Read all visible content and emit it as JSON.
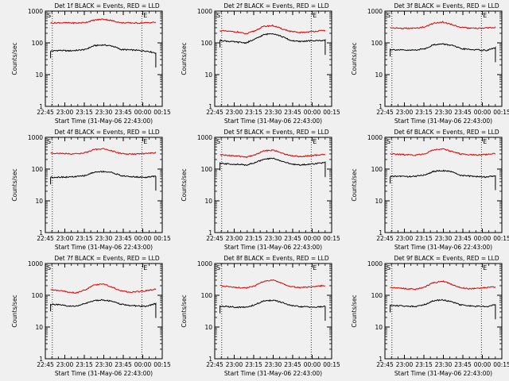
{
  "figure": {
    "background": "#f0f0f0",
    "black_color": "#000000",
    "red_color": "#dd0000"
  },
  "chart_data": [
    {
      "type": "line",
      "title": "Det 1f BLACK = Events, RED = LLD",
      "xlabel": "Start Time (31-May-06 22:43:00)",
      "ylabel": "Counts/sec",
      "x_tick_labels": [
        "22:45",
        "23:00",
        "23:15",
        "23:30",
        "23:45",
        "00:00",
        "00:15"
      ],
      "y_tick_labels": [
        "1",
        "10",
        "100",
        "1000"
      ],
      "yscale": "log",
      "ylim": [
        1,
        1000
      ],
      "markers": [
        "S",
        "E"
      ],
      "series": [
        {
          "color": "black",
          "values": [
            55,
            58,
            56,
            58,
            62,
            82,
            86,
            80,
            62,
            60,
            58,
            55,
            48
          ]
        },
        {
          "color": "red",
          "values": [
            420,
            430,
            425,
            420,
            440,
            520,
            560,
            500,
            430,
            425,
            420,
            430,
            445
          ]
        }
      ]
    },
    {
      "type": "line",
      "title": "Det 2f BLACK = Events, RED = LLD",
      "xlabel": "Start Time (31-May-06 22:43:00)",
      "ylabel": "Counts/sec",
      "x_tick_labels": [
        "22:45",
        "23:00",
        "23:15",
        "23:30",
        "23:45",
        "00:00",
        "00:15"
      ],
      "y_tick_labels": [
        "1",
        "10",
        "100",
        "1000"
      ],
      "yscale": "log",
      "ylim": [
        1,
        1000
      ],
      "markers": [
        "S",
        "E"
      ],
      "series": [
        {
          "color": "black",
          "values": [
            120,
            112,
            105,
            100,
            130,
            180,
            200,
            160,
            120,
            110,
            115,
            118,
            120
          ]
        },
        {
          "color": "red",
          "values": [
            240,
            230,
            220,
            190,
            240,
            330,
            350,
            280,
            230,
            210,
            220,
            235,
            245
          ]
        }
      ]
    },
    {
      "type": "line",
      "title": "Det 3f BLACK = Events, RED = LLD",
      "xlabel": "Start Time (31-May-06 22:43:00)",
      "ylabel": "Counts/sec",
      "x_tick_labels": [
        "22:45",
        "23:00",
        "23:15",
        "23:30",
        "23:45",
        "00:00",
        "00:15"
      ],
      "y_tick_labels": [
        "1",
        "10",
        "100",
        "1000"
      ],
      "yscale": "log",
      "ylim": [
        1,
        1000
      ],
      "markers": [
        "S",
        "E"
      ],
      "series": [
        {
          "color": "black",
          "values": [
            62,
            60,
            58,
            60,
            66,
            88,
            92,
            84,
            66,
            62,
            60,
            58,
            70
          ]
        },
        {
          "color": "red",
          "values": [
            300,
            290,
            285,
            290,
            320,
            420,
            450,
            380,
            310,
            290,
            285,
            295,
            310
          ]
        }
      ]
    },
    {
      "type": "line",
      "title": "Det 4f BLACK = Events, RED = LLD",
      "xlabel": "Start Time (31-May-06 22:43:00)",
      "ylabel": "Counts/sec",
      "x_tick_labels": [
        "22:45",
        "23:00",
        "23:15",
        "23:30",
        "23:45",
        "00:00",
        "00:15"
      ],
      "y_tick_labels": [
        "1",
        "10",
        "100",
        "1000"
      ],
      "yscale": "log",
      "ylim": [
        1,
        1000
      ],
      "markers": [
        "S",
        "E"
      ],
      "series": [
        {
          "color": "black",
          "values": [
            55,
            56,
            56,
            58,
            63,
            80,
            84,
            78,
            62,
            58,
            56,
            55,
            60
          ]
        },
        {
          "color": "red",
          "values": [
            320,
            310,
            305,
            300,
            330,
            410,
            440,
            370,
            310,
            295,
            300,
            310,
            330
          ]
        }
      ]
    },
    {
      "type": "line",
      "title": "Det 5f BLACK = Events, RED = LLD",
      "xlabel": "Start Time (31-May-06 22:43:00)",
      "ylabel": "Counts/sec",
      "x_tick_labels": [
        "22:45",
        "23:00",
        "23:15",
        "23:30",
        "23:45",
        "00:00",
        "00:15"
      ],
      "y_tick_labels": [
        "1",
        "10",
        "100",
        "1000"
      ],
      "yscale": "log",
      "ylim": [
        1,
        1000
      ],
      "markers": [
        "S",
        "E"
      ],
      "series": [
        {
          "color": "black",
          "values": [
            150,
            145,
            140,
            135,
            160,
            200,
            220,
            180,
            145,
            135,
            140,
            150,
            160
          ]
        },
        {
          "color": "red",
          "values": [
            280,
            270,
            255,
            240,
            280,
            370,
            400,
            320,
            270,
            250,
            260,
            275,
            285
          ]
        }
      ]
    },
    {
      "type": "line",
      "title": "Det 6f BLACK = Events, RED = LLD",
      "xlabel": "Start Time (31-May-06 22:43:00)",
      "ylabel": "Counts/sec",
      "x_tick_labels": [
        "22:45",
        "23:00",
        "23:15",
        "23:30",
        "23:45",
        "00:00",
        "00:15"
      ],
      "y_tick_labels": [
        "1",
        "10",
        "100",
        "1000"
      ],
      "yscale": "log",
      "ylim": [
        1,
        1000
      ],
      "markers": [
        "S",
        "E"
      ],
      "series": [
        {
          "color": "black",
          "values": [
            58,
            60,
            58,
            60,
            66,
            85,
            90,
            82,
            64,
            60,
            58,
            56,
            62
          ]
        },
        {
          "color": "red",
          "values": [
            300,
            290,
            280,
            275,
            310,
            400,
            430,
            360,
            300,
            285,
            280,
            290,
            305
          ]
        }
      ]
    },
    {
      "type": "line",
      "title": "Det 7f BLACK = Events, RED = LLD",
      "xlabel": "Start Time (31-May-06 22:43:00)",
      "ylabel": "Counts/sec",
      "x_tick_labels": [
        "22:45",
        "23:00",
        "23:15",
        "23:30",
        "23:45",
        "00:00",
        "00:15"
      ],
      "y_tick_labels": [
        "1",
        "10",
        "100",
        "1000"
      ],
      "yscale": "log",
      "ylim": [
        1,
        1000
      ],
      "markers": [
        "S",
        "E"
      ],
      "series": [
        {
          "color": "black",
          "values": [
            52,
            50,
            45,
            46,
            55,
            68,
            72,
            64,
            52,
            48,
            46,
            45,
            55
          ]
        },
        {
          "color": "red",
          "values": [
            150,
            140,
            125,
            120,
            150,
            210,
            230,
            180,
            140,
            125,
            130,
            140,
            155
          ]
        }
      ]
    },
    {
      "type": "line",
      "title": "Det 8f BLACK = Events, RED = LLD",
      "xlabel": "Start Time (31-May-06 22:43:00)",
      "ylabel": "Counts/sec",
      "x_tick_labels": [
        "22:45",
        "23:00",
        "23:15",
        "23:30",
        "23:45",
        "00:00",
        "00:15"
      ],
      "y_tick_labels": [
        "1",
        "10",
        "100",
        "1000"
      ],
      "yscale": "log",
      "ylim": [
        1,
        1000
      ],
      "markers": [
        "S",
        "E"
      ],
      "series": [
        {
          "color": "black",
          "values": [
            45,
            44,
            42,
            42,
            50,
            66,
            70,
            60,
            48,
            44,
            43,
            42,
            45
          ]
        },
        {
          "color": "red",
          "values": [
            200,
            190,
            175,
            170,
            200,
            270,
            300,
            240,
            190,
            175,
            180,
            190,
            205
          ]
        }
      ]
    },
    {
      "type": "line",
      "title": "Det 9f BLACK = Events, RED = LLD",
      "xlabel": "Start Time (31-May-06 22:43:00)",
      "ylabel": "Counts/sec",
      "x_tick_labels": [
        "22:45",
        "23:00",
        "23:15",
        "23:30",
        "23:45",
        "00:00",
        "00:15"
      ],
      "y_tick_labels": [
        "1",
        "10",
        "100",
        "1000"
      ],
      "yscale": "log",
      "ylim": [
        1,
        1000
      ],
      "markers": [
        "S",
        "E"
      ],
      "series": [
        {
          "color": "black",
          "values": [
            48,
            47,
            45,
            45,
            52,
            68,
            72,
            62,
            50,
            46,
            45,
            44,
            50
          ]
        },
        {
          "color": "red",
          "values": [
            180,
            170,
            160,
            155,
            185,
            250,
            280,
            220,
            175,
            160,
            165,
            175,
            185
          ]
        }
      ]
    }
  ]
}
